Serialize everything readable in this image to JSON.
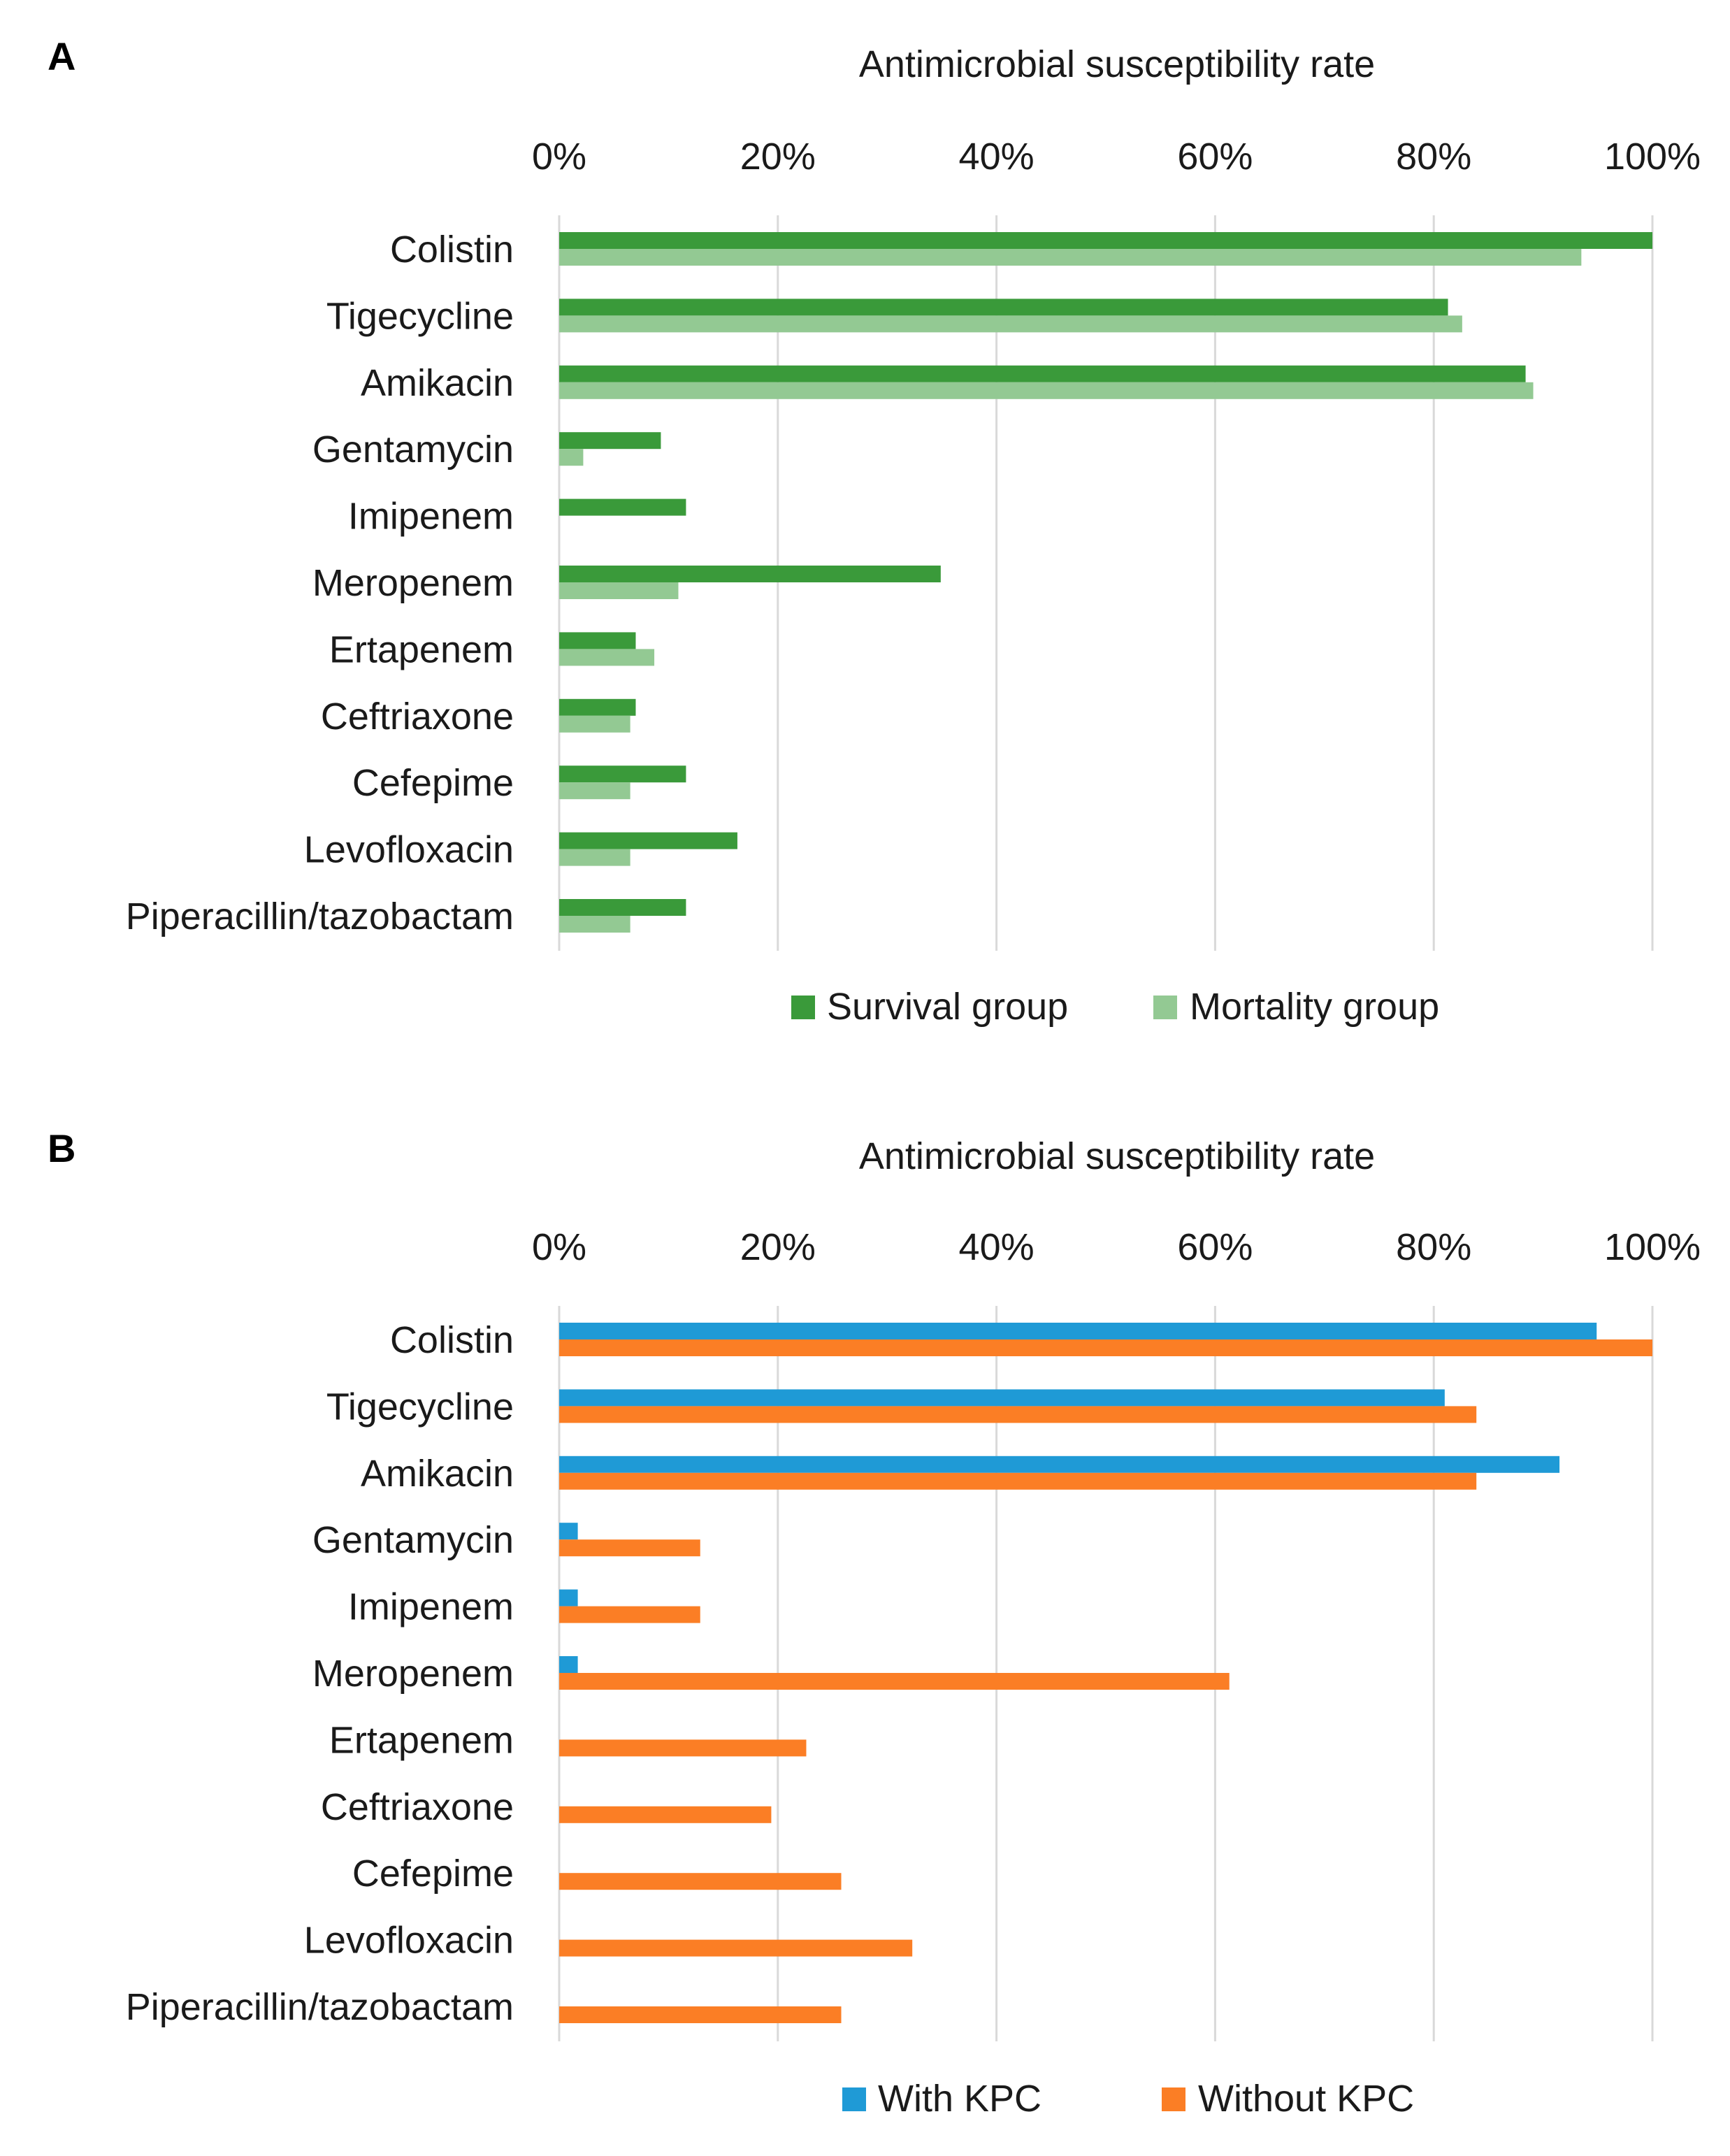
{
  "chart_data": [
    {
      "panel": "A",
      "type": "bar",
      "orientation": "horizontal",
      "title": "",
      "xlabel": "Antimicrobial susceptibility rate",
      "ylabel": "",
      "xlim": [
        0,
        100
      ],
      "ticks": [
        "0%",
        "20%",
        "40%",
        "60%",
        "80%",
        "100%"
      ],
      "grid": true,
      "legend_position": "bottom",
      "categories": [
        "Colistin",
        "Tigecycline",
        "Amikacin",
        "Gentamycin",
        "Imipenem",
        "Meropenem",
        "Ertapenem",
        "Ceftriaxone",
        "Cefepime",
        "Levofloxacin",
        "Piperacillin/tazobactam"
      ],
      "series": [
        {
          "name": "Survival group",
          "color": "#3a9a3a",
          "values": [
            100,
            81.3,
            88.4,
            9.3,
            11.6,
            34.9,
            7,
            7,
            11.6,
            16.3,
            11.6
          ]
        },
        {
          "name": "Mortality group",
          "color": "#93c993",
          "values": [
            93.5,
            82.6,
            89.1,
            2.2,
            0,
            10.9,
            8.7,
            6.5,
            6.5,
            6.5,
            6.5
          ]
        }
      ]
    },
    {
      "panel": "B",
      "type": "bar",
      "orientation": "horizontal",
      "title": "",
      "xlabel": "Antimicrobial susceptibility rate",
      "ylabel": "",
      "xlim": [
        0,
        100
      ],
      "ticks": [
        "0%",
        "20%",
        "40%",
        "60%",
        "80%",
        "100%"
      ],
      "grid": true,
      "legend_position": "bottom",
      "categories": [
        "Colistin",
        "Tigecycline",
        "Amikacin",
        "Gentamycin",
        "Imipenem",
        "Meropenem",
        "Ertapenem",
        "Ceftriaxone",
        "Cefepime",
        "Levofloxacin",
        "Piperacillin/tazobactam"
      ],
      "series": [
        {
          "name": "With KPC",
          "color": "#1f9ad6",
          "values": [
            94.9,
            81,
            91.5,
            1.7,
            1.7,
            1.7,
            0,
            0,
            0,
            0,
            0
          ]
        },
        {
          "name": "Without KPC",
          "color": "#fb7e25",
          "values": [
            100,
            83.9,
            83.9,
            12.9,
            12.9,
            61.3,
            22.6,
            19.4,
            25.8,
            32.3,
            25.8
          ]
        }
      ]
    }
  ]
}
